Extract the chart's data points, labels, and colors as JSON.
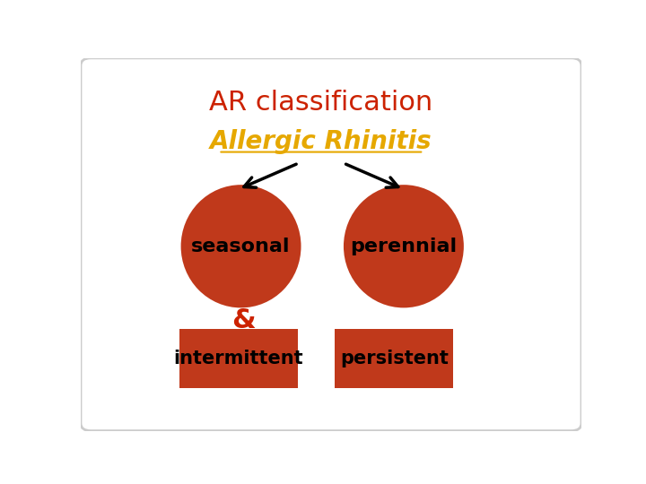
{
  "title": "AR classification",
  "title_color": "#cc2200",
  "subtitle": "Allergic Rhinitis",
  "subtitle_color": "#e6a800",
  "background_color": "#ffffff",
  "border_color": "#cccccc",
  "shape_color": "#c0391b",
  "text_color": "#000000",
  "ampersand_color": "#cc2200",
  "label_seasonal": "seasonal",
  "label_perennial": "perennial",
  "label_intermittent": "intermittent",
  "label_persistent": "persistent"
}
